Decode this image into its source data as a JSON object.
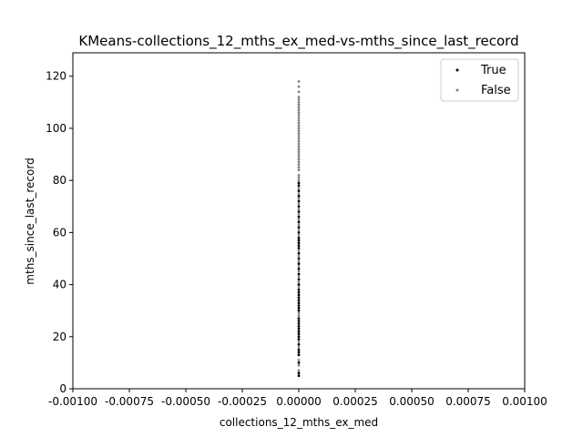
{
  "chart_data": {
    "type": "scatter",
    "title": "KMeans-collections_12_mths_ex_med-vs-mths_since_last_record",
    "xlabel": "collections_12_mths_ex_med",
    "ylabel": "mths_since_last_record",
    "xlim": [
      -0.001,
      0.001
    ],
    "ylim": [
      0,
      129
    ],
    "xticks": [
      "-0.00100",
      "-0.00075",
      "-0.00050",
      "-0.00025",
      "0.00000",
      "0.00025",
      "0.00050",
      "0.00075",
      "0.00100"
    ],
    "xtick_values": [
      -0.001,
      -0.00075,
      -0.0005,
      -0.00025,
      0,
      0.00025,
      0.0005,
      0.00075,
      0.001
    ],
    "yticks": [
      "0",
      "20",
      "40",
      "60",
      "80",
      "100",
      "120"
    ],
    "ytick_values": [
      0,
      20,
      40,
      60,
      80,
      100,
      120
    ],
    "grid": false,
    "legend_position": "top-right",
    "series": [
      {
        "name": "True",
        "color": "#000000",
        "x": [
          0,
          0,
          0,
          0,
          0,
          0,
          0,
          0,
          0,
          0,
          0,
          0,
          0,
          0,
          0,
          0,
          0,
          0,
          0,
          0,
          0,
          0,
          0,
          0,
          0,
          0,
          0,
          0,
          0,
          0,
          0,
          0,
          0,
          0,
          0,
          0,
          0,
          0,
          0,
          0,
          0,
          0,
          0,
          0,
          0,
          0,
          0,
          0
        ],
        "y": [
          5,
          6,
          10,
          13,
          14,
          15,
          17,
          19,
          20,
          21,
          22,
          23,
          24,
          25,
          26,
          27,
          30,
          31,
          32,
          33,
          34,
          35,
          36,
          37,
          38,
          40,
          42,
          44,
          46,
          48,
          50,
          52,
          54,
          55,
          56,
          57,
          58,
          60,
          62,
          64,
          66,
          68,
          70,
          72,
          74,
          76,
          78,
          79
        ]
      },
      {
        "name": "False",
        "color": "#808080",
        "x": [
          0,
          0,
          0,
          0,
          0,
          0,
          0,
          0,
          0,
          0,
          0,
          0,
          0,
          0,
          0,
          0,
          0,
          0,
          0,
          0,
          0,
          0,
          0,
          0,
          0,
          0,
          0,
          0,
          0,
          0,
          0,
          0,
          0,
          0,
          0,
          0,
          0,
          0,
          0,
          0,
          0,
          0,
          0,
          0,
          0,
          0,
          0,
          0,
          0,
          0,
          0,
          0,
          0,
          0,
          0,
          0,
          0,
          0,
          0,
          0
        ],
        "y": [
          7,
          9,
          11,
          16,
          18,
          28,
          29,
          39,
          41,
          43,
          45,
          47,
          49,
          51,
          53,
          59,
          61,
          63,
          65,
          67,
          69,
          71,
          73,
          75,
          77,
          80,
          81,
          82,
          84,
          85,
          86,
          87,
          88,
          89,
          90,
          91,
          92,
          93,
          94,
          95,
          96,
          97,
          98,
          99,
          100,
          101,
          102,
          103,
          104,
          105,
          106,
          107,
          108,
          109,
          110,
          111,
          112,
          114,
          116,
          118
        ]
      }
    ]
  }
}
